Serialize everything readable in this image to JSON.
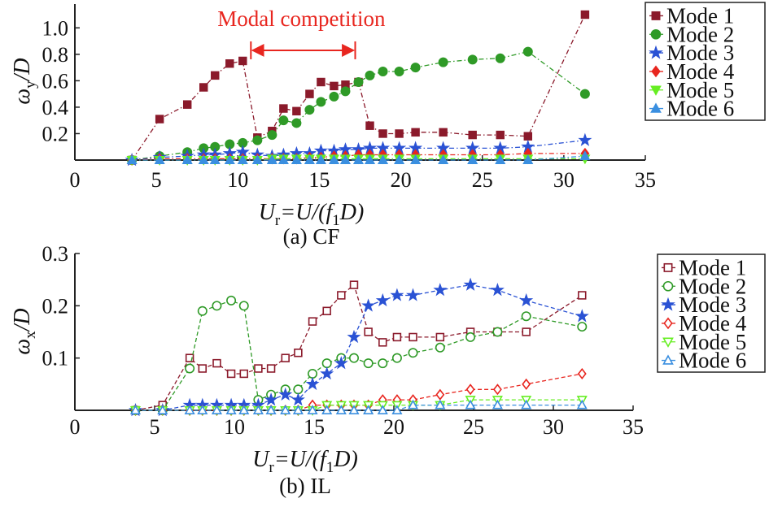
{
  "chart_data": [
    {
      "type": "line",
      "panel": "CF",
      "caption": "(a) CF",
      "xlabel": "U_r=U/(f_1D)",
      "xlabel_parts": {
        "a": "U",
        "a_sub": "r",
        "b": "=U/(f",
        "b_sub": "1",
        "c": "D)"
      },
      "ylabel": "ω_y/D",
      "ylabel_parts": {
        "sym": "ω",
        "sub": "y",
        "rest": "/D"
      },
      "xlim": [
        0,
        35
      ],
      "ylim": [
        0,
        1.18
      ],
      "xticks": [
        0,
        5,
        10,
        15,
        20,
        25,
        30,
        35
      ],
      "xtick_labels": [
        "0",
        "5",
        "10",
        "15",
        "20",
        "25",
        "30",
        "35"
      ],
      "yticks": [
        0.2,
        0.4,
        0.6,
        0.8,
        1.0
      ],
      "ytick_labels": [
        "0.2",
        "0.4",
        "0.6",
        "0.8",
        "1.0"
      ],
      "grid": false,
      "legend": "outside-right",
      "annotation": {
        "text": "Modal competition",
        "x_start": 10.8,
        "x_end": 17.2,
        "y": 0.83,
        "color": "#e8261f"
      },
      "series": [
        {
          "name": "Mode 1",
          "color": "#8b1a2b",
          "marker": "square",
          "filled": true,
          "dash": "dashdot",
          "x": [
            3.5,
            5.2,
            6.9,
            7.9,
            8.6,
            9.5,
            10.3,
            11.2,
            12.1,
            12.8,
            13.6,
            14.4,
            15.1,
            15.9,
            16.6,
            17.4,
            18.1,
            18.9,
            19.9,
            20.9,
            22.6,
            24.4,
            26.1,
            27.8,
            31.3
          ],
          "y": [
            0.0,
            0.31,
            0.42,
            0.55,
            0.64,
            0.73,
            0.75,
            0.17,
            0.22,
            0.39,
            0.37,
            0.5,
            0.59,
            0.56,
            0.57,
            0.59,
            0.26,
            0.2,
            0.2,
            0.21,
            0.21,
            0.19,
            0.19,
            0.18,
            1.1
          ]
        },
        {
          "name": "Mode 2",
          "color": "#2f9a27",
          "marker": "circle",
          "filled": true,
          "dash": "dashdot",
          "x": [
            3.5,
            5.2,
            6.9,
            7.9,
            8.6,
            9.5,
            10.3,
            11.2,
            12.1,
            12.8,
            13.6,
            14.4,
            15.1,
            15.9,
            16.6,
            17.4,
            18.1,
            18.9,
            19.9,
            20.9,
            22.6,
            24.4,
            26.1,
            27.8,
            31.3
          ],
          "y": [
            0.0,
            0.03,
            0.06,
            0.09,
            0.1,
            0.12,
            0.13,
            0.15,
            0.19,
            0.3,
            0.28,
            0.38,
            0.44,
            0.48,
            0.52,
            0.59,
            0.64,
            0.67,
            0.67,
            0.7,
            0.74,
            0.76,
            0.77,
            0.82,
            0.5
          ]
        },
        {
          "name": "Mode 3",
          "color": "#2a52d4",
          "marker": "star",
          "filled": true,
          "dash": "dashdot",
          "x": [
            3.5,
            5.2,
            6.9,
            7.9,
            8.6,
            9.5,
            10.3,
            11.2,
            12.1,
            12.8,
            13.6,
            14.4,
            15.1,
            15.9,
            16.6,
            17.4,
            18.1,
            18.9,
            19.9,
            20.9,
            22.6,
            24.4,
            26.1,
            27.8,
            31.3
          ],
          "y": [
            0.0,
            0.02,
            0.03,
            0.04,
            0.04,
            0.05,
            0.06,
            0.04,
            0.03,
            0.04,
            0.05,
            0.05,
            0.07,
            0.07,
            0.08,
            0.08,
            0.09,
            0.09,
            0.09,
            0.09,
            0.09,
            0.09,
            0.09,
            0.1,
            0.15
          ]
        },
        {
          "name": "Mode 4",
          "color": "#e8261f",
          "marker": "diamond",
          "filled": true,
          "dash": "dashdot",
          "x": [
            3.5,
            5.2,
            6.9,
            7.9,
            8.6,
            9.5,
            10.3,
            11.2,
            12.1,
            12.8,
            13.6,
            14.4,
            15.1,
            15.9,
            16.6,
            17.4,
            18.1,
            18.9,
            19.9,
            20.9,
            22.6,
            24.4,
            26.1,
            27.8,
            31.3
          ],
          "y": [
            0.0,
            0.01,
            0.01,
            0.01,
            0.01,
            0.01,
            0.01,
            0.01,
            0.01,
            0.01,
            0.01,
            0.02,
            0.02,
            0.03,
            0.03,
            0.04,
            0.04,
            0.04,
            0.04,
            0.04,
            0.04,
            0.04,
            0.04,
            0.05,
            0.05
          ]
        },
        {
          "name": "Mode 5",
          "color": "#66ee22",
          "marker": "triangle-down",
          "filled": true,
          "dash": "dashdot",
          "x": [
            3.5,
            5.2,
            6.9,
            7.9,
            8.6,
            9.5,
            10.3,
            11.2,
            12.1,
            12.8,
            13.6,
            14.4,
            15.1,
            15.9,
            16.6,
            17.4,
            18.1,
            18.9,
            19.9,
            20.9,
            22.6,
            24.4,
            26.1,
            27.8,
            31.3
          ],
          "y": [
            0.0,
            0.0,
            0.0,
            0.0,
            0.0,
            0.0,
            0.0,
            0.0,
            0.01,
            0.01,
            0.01,
            0.01,
            0.01,
            0.01,
            0.01,
            0.01,
            0.01,
            0.01,
            0.01,
            0.01,
            0.01,
            0.01,
            0.01,
            0.01,
            0.01
          ]
        },
        {
          "name": "Mode 6",
          "color": "#3a8fe0",
          "marker": "triangle-up",
          "filled": true,
          "dash": "dashdot",
          "x": [
            3.5,
            5.2,
            6.9,
            7.9,
            8.6,
            9.5,
            10.3,
            11.2,
            12.1,
            12.8,
            13.6,
            14.4,
            15.1,
            15.9,
            16.6,
            17.4,
            18.1,
            18.9,
            19.9,
            20.9,
            22.6,
            24.4,
            26.1,
            27.8,
            31.3
          ],
          "y": [
            0.0,
            0.0,
            0.0,
            0.0,
            0.0,
            0.0,
            0.0,
            0.0,
            0.0,
            0.0,
            0.0,
            0.0,
            0.0,
            0.0,
            0.0,
            0.0,
            0.0,
            0.0,
            0.0,
            0.0,
            0.0,
            0.0,
            0.0,
            0.0,
            0.03
          ]
        }
      ]
    },
    {
      "type": "line",
      "panel": "IL",
      "caption": "(b) IL",
      "xlabel": "U_r=U/(f_1D)",
      "xlabel_parts": {
        "a": "U",
        "a_sub": "r",
        "b": "=U/(f",
        "b_sub": "1",
        "c": "D)"
      },
      "ylabel": "ω_x/D",
      "ylabel_parts": {
        "sym": "ω",
        "sub": "x",
        "rest": "/D"
      },
      "xlim": [
        0,
        35
      ],
      "ylim": [
        0,
        0.3
      ],
      "xticks": [
        0,
        5,
        10,
        15,
        20,
        25,
        30,
        35
      ],
      "xtick_labels": [
        "0",
        "5",
        "10",
        "15",
        "20",
        "25",
        "30",
        "35"
      ],
      "yticks": [
        0.1,
        0.2,
        0.3
      ],
      "ytick_labels": [
        "0.1",
        "0.2",
        "0.3"
      ],
      "grid": false,
      "legend": "outside-right",
      "series": [
        {
          "name": "Mode 1",
          "color": "#8b1a2b",
          "marker": "square",
          "filled": false,
          "dash": "dashed",
          "x": [
            3.8,
            5.5,
            7.2,
            8.0,
            8.9,
            9.8,
            10.6,
            11.5,
            12.3,
            13.2,
            14.0,
            14.9,
            15.8,
            16.7,
            17.5,
            18.4,
            19.3,
            20.2,
            21.2,
            22.9,
            24.8,
            26.5,
            28.3,
            31.8
          ],
          "y": [
            0.0,
            0.01,
            0.1,
            0.08,
            0.09,
            0.07,
            0.07,
            0.08,
            0.08,
            0.1,
            0.11,
            0.17,
            0.19,
            0.22,
            0.24,
            0.15,
            0.13,
            0.14,
            0.14,
            0.14,
            0.15,
            0.15,
            0.15,
            0.22
          ]
        },
        {
          "name": "Mode 2",
          "color": "#2f9a27",
          "marker": "circle",
          "filled": false,
          "dash": "dashed",
          "x": [
            3.8,
            5.5,
            7.2,
            8.0,
            8.9,
            9.8,
            10.6,
            11.5,
            12.3,
            13.2,
            14.0,
            14.9,
            15.8,
            16.7,
            17.5,
            18.4,
            19.3,
            20.2,
            21.2,
            22.9,
            24.8,
            26.5,
            28.3,
            31.8
          ],
          "y": [
            0.0,
            0.0,
            0.08,
            0.19,
            0.2,
            0.21,
            0.2,
            0.02,
            0.03,
            0.04,
            0.04,
            0.07,
            0.09,
            0.1,
            0.1,
            0.09,
            0.09,
            0.1,
            0.11,
            0.12,
            0.14,
            0.15,
            0.18,
            0.16
          ]
        },
        {
          "name": "Mode 3",
          "color": "#2a52d4",
          "marker": "star",
          "filled": true,
          "dash": "dashed",
          "x": [
            3.8,
            5.5,
            7.2,
            8.0,
            8.9,
            9.8,
            10.6,
            11.5,
            12.3,
            13.2,
            14.0,
            14.9,
            15.8,
            16.7,
            17.5,
            18.4,
            19.3,
            20.2,
            21.2,
            22.9,
            24.8,
            26.5,
            28.3,
            31.8
          ],
          "y": [
            0.0,
            0.0,
            0.01,
            0.01,
            0.01,
            0.01,
            0.01,
            0.01,
            0.02,
            0.03,
            0.02,
            0.05,
            0.07,
            0.09,
            0.14,
            0.2,
            0.21,
            0.22,
            0.22,
            0.23,
            0.24,
            0.23,
            0.21,
            0.18
          ]
        },
        {
          "name": "Mode 4",
          "color": "#e8261f",
          "marker": "diamond",
          "filled": false,
          "dash": "dashed",
          "x": [
            3.8,
            5.5,
            7.2,
            8.0,
            8.9,
            9.8,
            10.6,
            11.5,
            12.3,
            13.2,
            14.0,
            14.9,
            15.8,
            16.7,
            17.5,
            18.4,
            19.3,
            20.2,
            21.2,
            22.9,
            24.8,
            26.5,
            28.3,
            31.8
          ],
          "y": [
            0.0,
            0.0,
            0.0,
            0.0,
            0.0,
            0.0,
            0.0,
            0.0,
            0.0,
            0.0,
            0.0,
            0.01,
            0.01,
            0.01,
            0.01,
            0.01,
            0.02,
            0.02,
            0.02,
            0.03,
            0.04,
            0.04,
            0.05,
            0.07
          ]
        },
        {
          "name": "Mode 5",
          "color": "#66ee22",
          "marker": "triangle-down",
          "filled": false,
          "dash": "dashed",
          "x": [
            3.8,
            5.5,
            7.2,
            8.0,
            8.9,
            9.8,
            10.6,
            11.5,
            12.3,
            13.2,
            14.0,
            14.9,
            15.8,
            16.7,
            17.5,
            18.4,
            19.3,
            20.2,
            21.2,
            22.9,
            24.8,
            26.5,
            28.3,
            31.8
          ],
          "y": [
            0.0,
            0.0,
            0.0,
            0.0,
            0.0,
            0.0,
            0.0,
            0.0,
            0.0,
            0.0,
            0.0,
            0.0,
            0.01,
            0.01,
            0.01,
            0.01,
            0.01,
            0.01,
            0.01,
            0.01,
            0.02,
            0.02,
            0.02,
            0.02
          ]
        },
        {
          "name": "Mode 6",
          "color": "#3a8fe0",
          "marker": "triangle-up",
          "filled": false,
          "dash": "dashed",
          "x": [
            3.8,
            5.5,
            7.2,
            8.0,
            8.9,
            9.8,
            10.6,
            11.5,
            12.3,
            13.2,
            14.0,
            14.9,
            15.8,
            16.7,
            17.5,
            18.4,
            19.3,
            20.2,
            21.2,
            22.9,
            24.8,
            26.5,
            28.3,
            31.8
          ],
          "y": [
            0.0,
            0.0,
            0.0,
            0.0,
            0.0,
            0.0,
            0.0,
            0.0,
            0.0,
            0.0,
            0.0,
            0.0,
            0.0,
            0.0,
            0.0,
            0.0,
            0.0,
            0.0,
            0.01,
            0.01,
            0.01,
            0.01,
            0.01,
            0.01
          ]
        }
      ]
    }
  ]
}
